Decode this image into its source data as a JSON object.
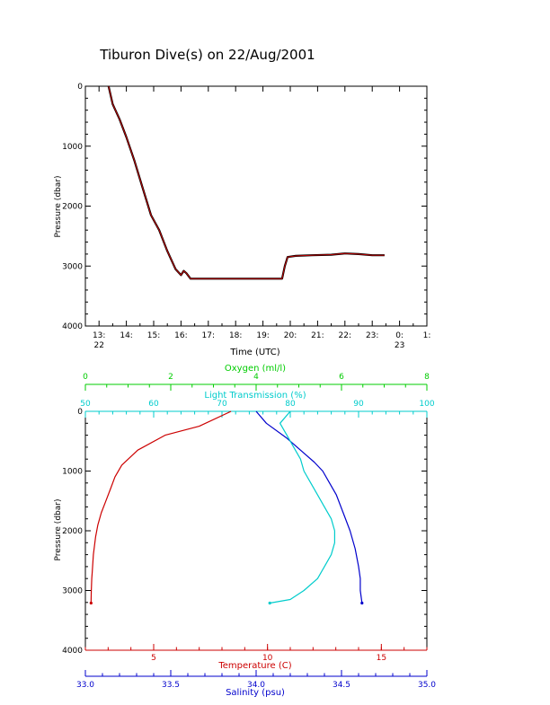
{
  "title": "Tiburon Dive(s) on 22/Aug/2001",
  "chart_data": [
    {
      "type": "line",
      "name": "time-series",
      "xlabel": "Time (UTC)",
      "ylabel": "Pressure (dbar)",
      "x_unit": "hours UTC",
      "xlim": [
        12.5,
        25.0
      ],
      "ylim": [
        4000,
        0
      ],
      "xticks": [
        {
          "v": 13,
          "label": "13:",
          "sub": "22"
        },
        {
          "v": 14,
          "label": "14:",
          "sub": ""
        },
        {
          "v": 15,
          "label": "15:",
          "sub": ""
        },
        {
          "v": 16,
          "label": "16:",
          "sub": ""
        },
        {
          "v": 17,
          "label": "17:",
          "sub": ""
        },
        {
          "v": 18,
          "label": "18:",
          "sub": ""
        },
        {
          "v": 19,
          "label": "19:",
          "sub": ""
        },
        {
          "v": 20,
          "label": "20:",
          "sub": ""
        },
        {
          "v": 21,
          "label": "21:",
          "sub": ""
        },
        {
          "v": 22,
          "label": "22:",
          "sub": ""
        },
        {
          "v": 23,
          "label": "23:",
          "sub": ""
        },
        {
          "v": 24,
          "label": "0:",
          "sub": "23"
        },
        {
          "v": 25,
          "label": "1:",
          "sub": ""
        }
      ],
      "yticks": [
        {
          "v": 0,
          "label": "0"
        },
        {
          "v": 1000,
          "label": "1000"
        },
        {
          "v": 2000,
          "label": "2000"
        },
        {
          "v": 3000,
          "label": "3000"
        },
        {
          "v": 4000,
          "label": "4000"
        }
      ],
      "series": [
        {
          "color": "#cc0000",
          "x": [
            13.35,
            13.5,
            13.75,
            14.0,
            14.3,
            14.6,
            14.9,
            15.2,
            15.5,
            15.8,
            16.0,
            16.1,
            16.2,
            16.35,
            16.5,
            17.0,
            18.0,
            19.0,
            19.7,
            19.8,
            19.9,
            20.2,
            20.8,
            21.5,
            22.0,
            22.5,
            23.0,
            23.45
          ],
          "y": [
            0,
            300,
            550,
            850,
            1250,
            1700,
            2150,
            2400,
            2750,
            3050,
            3150,
            3080,
            3120,
            3210,
            3210,
            3210,
            3210,
            3210,
            3210,
            3000,
            2850,
            2830,
            2820,
            2810,
            2790,
            2800,
            2820,
            2820
          ]
        }
      ]
    },
    {
      "type": "line",
      "name": "profile",
      "ylabel": "Pressure (dbar)",
      "ylim": [
        4000,
        0
      ],
      "yticks": [
        {
          "v": 0,
          "label": "0"
        },
        {
          "v": 1000,
          "label": "1000"
        },
        {
          "v": 2000,
          "label": "2000"
        },
        {
          "v": 3000,
          "label": "3000"
        },
        {
          "v": 4000,
          "label": "4000"
        }
      ],
      "axes": [
        {
          "key": "oxygen",
          "position": "top-outer",
          "label": "Oxygen (ml/l)",
          "color": "#00cc00",
          "lim": [
            0,
            8
          ],
          "ticks": [
            {
              "v": 0,
              "label": "0"
            },
            {
              "v": 2,
              "label": "2"
            },
            {
              "v": 4,
              "label": "4"
            },
            {
              "v": 6,
              "label": "6"
            },
            {
              "v": 8,
              "label": "8"
            }
          ]
        },
        {
          "key": "transmission",
          "position": "top-inner",
          "label": "Light Transmission (%)",
          "color": "#00cccc",
          "lim": [
            50,
            100
          ],
          "ticks": [
            {
              "v": 50,
              "label": "50"
            },
            {
              "v": 60,
              "label": "60"
            },
            {
              "v": 70,
              "label": "70"
            },
            {
              "v": 80,
              "label": "80"
            },
            {
              "v": 90,
              "label": "90"
            },
            {
              "v": 100,
              "label": "100"
            }
          ]
        },
        {
          "key": "temperature",
          "position": "bottom-inner",
          "label": "Temperature (C)",
          "color": "#cc0000",
          "lim": [
            2.0,
            17.0
          ],
          "ticks": [
            {
              "v": 5,
              "label": "5"
            },
            {
              "v": 10,
              "label": "10"
            },
            {
              "v": 15,
              "label": "15"
            }
          ]
        },
        {
          "key": "salinity",
          "position": "bottom-outer",
          "label": "Salinity (psu)",
          "color": "#0000cc",
          "lim": [
            33.0,
            35.0
          ],
          "ticks": [
            {
              "v": 33.0,
              "label": "33.0"
            },
            {
              "v": 33.5,
              "label": "33.5"
            },
            {
              "v": 34.0,
              "label": "34.0"
            },
            {
              "v": 34.5,
              "label": "34.5"
            },
            {
              "v": 35.0,
              "label": "35.0"
            }
          ]
        }
      ],
      "series": [
        {
          "axis": "temperature",
          "color": "#cc0000",
          "x": [
            8.4,
            7.0,
            5.5,
            4.3,
            3.6,
            3.3,
            3.1,
            2.9,
            2.7,
            2.55,
            2.45,
            2.35,
            2.3,
            2.28,
            2.26,
            2.25
          ],
          "y": [
            0,
            250,
            400,
            650,
            900,
            1100,
            1300,
            1500,
            1700,
            1900,
            2100,
            2400,
            2700,
            2800,
            3000,
            3210
          ]
        },
        {
          "axis": "salinity",
          "color": "#0000cc",
          "x": [
            34.0,
            34.06,
            34.18,
            34.28,
            34.34,
            34.39,
            34.43,
            34.47,
            34.51,
            34.55,
            34.58,
            34.6,
            34.61,
            34.61,
            34.62
          ],
          "y": [
            0,
            200,
            450,
            700,
            850,
            1000,
            1200,
            1400,
            1700,
            2000,
            2300,
            2600,
            2800,
            3000,
            3210
          ]
        },
        {
          "axis": "transmission",
          "color": "#00cccc",
          "x": [
            80,
            78.5,
            79.5,
            80.5,
            81.5,
            82,
            83,
            84,
            85,
            86,
            86.5,
            86.5,
            86,
            85,
            84,
            82,
            80,
            77
          ],
          "y": [
            0,
            200,
            400,
            600,
            800,
            1000,
            1200,
            1400,
            1600,
            1800,
            2000,
            2200,
            2400,
            2600,
            2800,
            3000,
            3150,
            3210
          ]
        }
      ]
    }
  ]
}
